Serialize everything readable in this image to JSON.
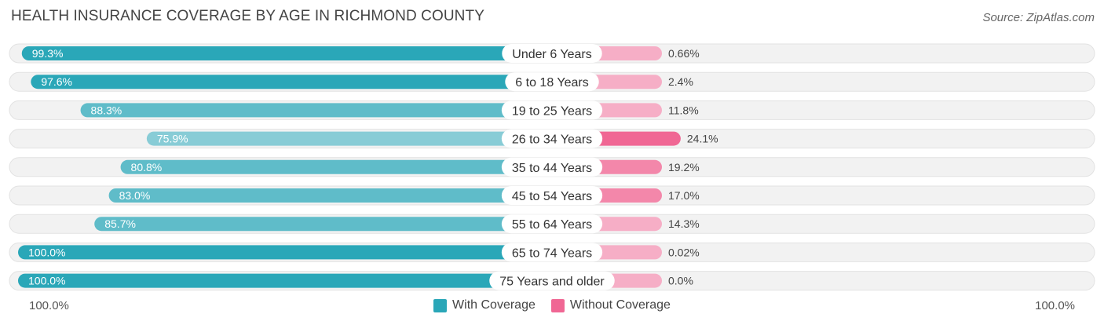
{
  "header": {
    "title": "HEALTH INSURANCE COVERAGE BY AGE IN RICHMOND COUNTY",
    "source": "Source: ZipAtlas.com"
  },
  "colors": {
    "with_coverage_dark": "#2aa7b8",
    "with_coverage_light": "#88ccd6",
    "without_coverage_dark": "#f06794",
    "without_coverage_light": "#f6aec6",
    "track": "#efefef"
  },
  "axis": {
    "left_label": "100.0%",
    "right_label": "100.0%"
  },
  "legend": {
    "with_label": "With Coverage",
    "without_label": "Without Coverage"
  },
  "chart_data": {
    "type": "bar",
    "orientation": "horizontal-diverging",
    "title": "HEALTH INSURANCE COVERAGE BY AGE IN RICHMOND COUNTY",
    "categories": [
      "Under 6 Years",
      "6 to 18 Years",
      "19 to 25 Years",
      "26 to 34 Years",
      "35 to 44 Years",
      "45 to 54 Years",
      "55 to 64 Years",
      "65 to 74 Years",
      "75 Years and older"
    ],
    "series": [
      {
        "name": "With Coverage",
        "values": [
          99.3,
          97.6,
          88.3,
          75.9,
          80.8,
          83.0,
          85.7,
          100.0,
          100.0
        ],
        "labels": [
          "99.3%",
          "97.6%",
          "88.3%",
          "75.9%",
          "80.8%",
          "83.0%",
          "85.7%",
          "100.0%",
          "100.0%"
        ]
      },
      {
        "name": "Without Coverage",
        "values": [
          0.66,
          2.4,
          11.8,
          24.1,
          19.2,
          17.0,
          14.3,
          0.02,
          0.0
        ],
        "labels": [
          "0.66%",
          "2.4%",
          "11.8%",
          "24.1%",
          "19.2%",
          "17.0%",
          "14.3%",
          "0.02%",
          "0.0%"
        ]
      }
    ],
    "xlim": [
      0,
      100
    ],
    "legend_position": "bottom-center"
  }
}
